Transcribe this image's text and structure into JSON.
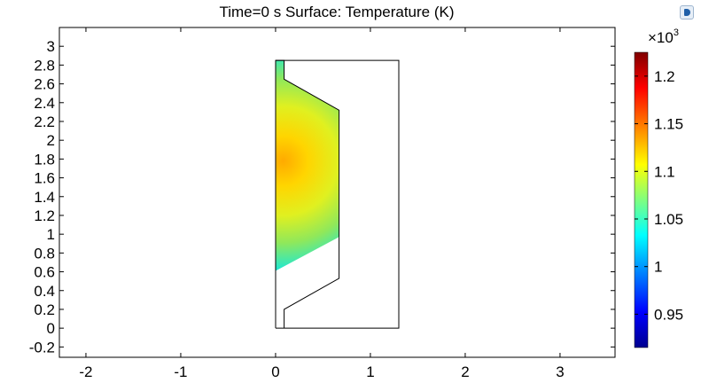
{
  "toolbar": {
    "icon": "comsol-plot-icon"
  },
  "chart_data": {
    "type": "heatmap",
    "title": "Time=0 s   Surface: Temperature (K)",
    "x_ticks": [
      -2,
      -1,
      0,
      1,
      2,
      3
    ],
    "y_ticks": [
      -0.2,
      0,
      0.2,
      0.4,
      0.6,
      0.8,
      1,
      1.2,
      1.4,
      1.6,
      1.8,
      2,
      2.2,
      2.4,
      2.6,
      2.8,
      3
    ],
    "x_tick_labels": [
      "-2",
      "-1",
      "0",
      "1",
      "2",
      "3"
    ],
    "y_tick_labels": [
      "-0.2",
      "0",
      "0.2",
      "0.4",
      "0.6",
      "0.8",
      "1",
      "1.2",
      "1.4",
      "1.6",
      "1.8",
      "2",
      "2.2",
      "2.4",
      "2.6",
      "2.8",
      "3"
    ],
    "xlim": [
      -2.28,
      3.58
    ],
    "ylim": [
      -0.31,
      3.2
    ],
    "colorbar": {
      "multiplier_label": "×10",
      "multiplier_exponent": "3",
      "range": [
        0.915,
        1.225
      ],
      "ticks": [
        0.95,
        1,
        1.05,
        1.1,
        1.15,
        1.2
      ],
      "tick_labels": [
        "0.95",
        "1",
        "1.05",
        "1.1",
        "1.15",
        "1.2"
      ],
      "colormap": "rainbow"
    },
    "hotspot": {
      "x": 0.08,
      "y": 1.78,
      "value": 1.14
    },
    "geometry": {
      "outer_boundary": [
        [
          0,
          0
        ],
        [
          1.3,
          0
        ],
        [
          1.3,
          2.85
        ],
        [
          0,
          2.85
        ]
      ],
      "inner_boundary": [
        [
          0.09,
          0
        ],
        [
          0.09,
          0.2
        ],
        [
          0.67,
          0.53
        ],
        [
          0.67,
          0.97
        ]
      ],
      "upper_boundary": [
        [
          0,
          2.85
        ],
        [
          0.09,
          2.85
        ],
        [
          0.09,
          2.65
        ],
        [
          0.67,
          2.32
        ],
        [
          0.67,
          0.97
        ]
      ],
      "heated_region": [
        [
          0,
          0.61
        ],
        [
          0.67,
          0.97
        ],
        [
          0.67,
          2.32
        ],
        [
          0.09,
          2.65
        ],
        [
          0.09,
          2.85
        ],
        [
          0,
          2.85
        ]
      ]
    },
    "grid": false,
    "legend": "colorbar right"
  }
}
